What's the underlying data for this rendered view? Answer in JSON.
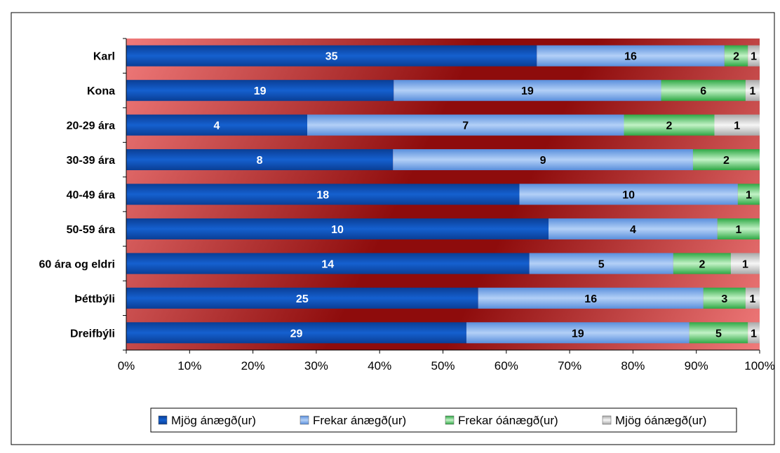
{
  "chart_data": {
    "type": "bar",
    "orientation": "horizontal",
    "stacked": "percent",
    "categories": [
      "Karl",
      "Kona",
      "20-29 ára",
      "30-39 ára",
      "40-49 ára",
      "50-59 ára",
      "60 ára og eldri",
      "Þéttbýli",
      "Dreifbýli"
    ],
    "series": [
      {
        "name": "Mjög ánægð(ur)",
        "values": [
          35,
          19,
          4,
          8,
          18,
          10,
          14,
          25,
          29
        ],
        "labels": [
          "35",
          "19",
          "4",
          "8",
          "18",
          "10",
          "14",
          "25",
          "29"
        ],
        "color": "#0b4fb5"
      },
      {
        "name": "Frekar ánægð(ur)",
        "values": [
          16,
          19,
          7,
          9,
          10,
          4,
          5,
          16,
          19
        ],
        "labels": [
          "16",
          "19",
          "7",
          "9",
          "10",
          "4",
          "5",
          "16",
          "19"
        ],
        "color": "#8fb6ef"
      },
      {
        "name": "Frekar óánægð(ur)",
        "values": [
          2,
          6,
          2,
          2,
          1,
          1,
          2,
          3,
          5
        ],
        "labels": [
          "2",
          "6",
          "2",
          "2",
          "1",
          "1",
          "2",
          "3",
          "5"
        ],
        "color": "#6fd37f"
      },
      {
        "name": "Mjög óánægð(ur)",
        "values": [
          1,
          1,
          1,
          0,
          0,
          0,
          1,
          1,
          1
        ],
        "labels": [
          "1",
          "1",
          "1",
          "",
          "",
          "",
          "1",
          "1",
          "1"
        ],
        "color": "#d9d9d9"
      }
    ],
    "x_ticks": [
      "0%",
      "10%",
      "20%",
      "30%",
      "40%",
      "50%",
      "60%",
      "70%",
      "80%",
      "90%",
      "100%"
    ],
    "xlim": [
      0,
      100
    ],
    "legend_position": "bottom",
    "grid": false
  }
}
